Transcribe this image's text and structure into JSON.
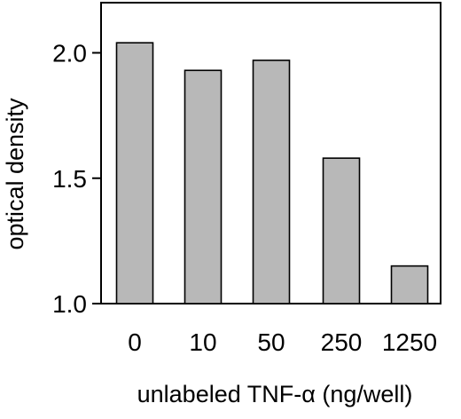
{
  "chart_data": {
    "type": "bar",
    "categories": [
      "0",
      "10",
      "50",
      "250",
      "1250"
    ],
    "values": [
      2.04,
      1.93,
      1.97,
      1.58,
      1.15
    ],
    "xlabel": "unlabeled TNF-α (ng/well)",
    "ylabel": "optical density",
    "ylim": [
      1.0,
      2.2
    ],
    "yticks": [
      1.0,
      1.5,
      2.0
    ],
    "ytick_labels": [
      "1.0",
      "1.5",
      "2.0"
    ],
    "grid": false,
    "bar_color": "#b8b8b8",
    "bar_edge_color": "#000000"
  }
}
